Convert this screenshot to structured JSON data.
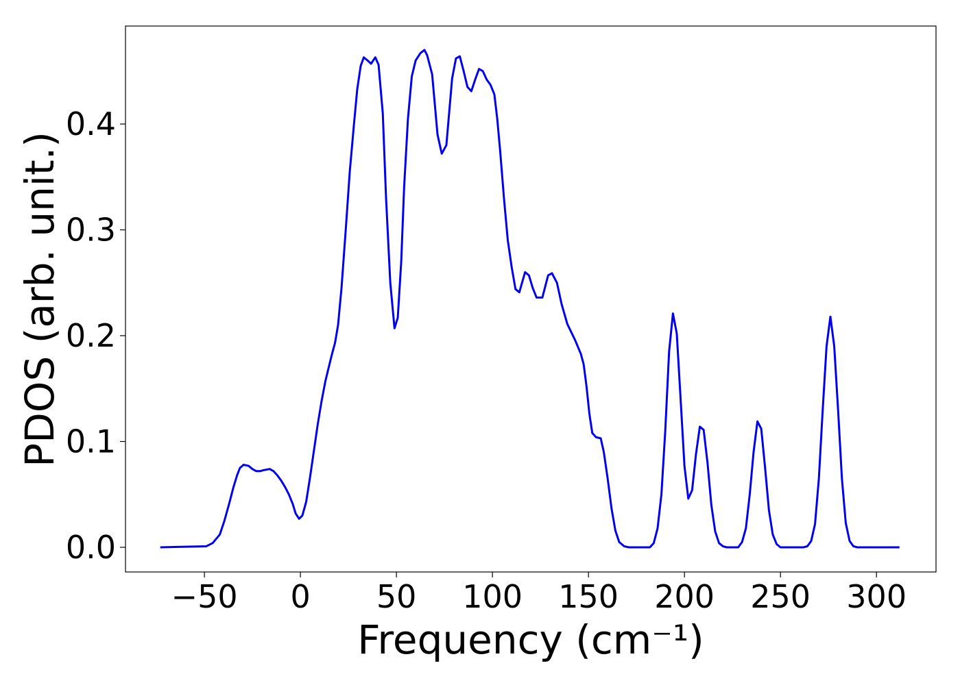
{
  "chart_data": {
    "type": "line",
    "xlabel": "Frequency (cm⁻¹)",
    "ylabel": "PDOS (arb. unit.)",
    "x": [
      -73,
      -49,
      -45.7,
      -42,
      -39.6,
      -37,
      -35,
      -33,
      -31.5,
      -29.6,
      -27,
      -25,
      -23,
      -21,
      -19,
      -16,
      -14,
      -12,
      -10,
      -8,
      -6,
      -4,
      -2.5,
      -0.7,
      1,
      3,
      5,
      7,
      9,
      11,
      13,
      15,
      16.5,
      18,
      19.6,
      21.4,
      23.6,
      25.7,
      27.9,
      29.6,
      31.4,
      33,
      35,
      36.8,
      39,
      40.7,
      42.9,
      44.6,
      46.8,
      49,
      50.7,
      52.5,
      54,
      56,
      58,
      60,
      62.5,
      64.6,
      66,
      68.6,
      71.4,
      73.6,
      76,
      79,
      81,
      83,
      85,
      87,
      89,
      91,
      93,
      95,
      97,
      99,
      101,
      102.5,
      104,
      106,
      108,
      110,
      112,
      114,
      117,
      119,
      121,
      123,
      126,
      129,
      131,
      133.6,
      136,
      139,
      143,
      146,
      147.5,
      149,
      150.5,
      152,
      154,
      156.4,
      158,
      160,
      162,
      164,
      166,
      168.6,
      171,
      182,
      184,
      186,
      188,
      190,
      192,
      194,
      196,
      198,
      200,
      202,
      204,
      206,
      208,
      210,
      212,
      214,
      216,
      218,
      220,
      222,
      228,
      230,
      232,
      234,
      236,
      238,
      240,
      242,
      244,
      246,
      248,
      250,
      262,
      264,
      266,
      268,
      270,
      272,
      274,
      276,
      278,
      280,
      282,
      284,
      286,
      288,
      290,
      312
    ],
    "series": [
      {
        "color": "#0000ee",
        "values": [
          0,
          0.001,
          0.004,
          0.012,
          0.025,
          0.042,
          0.056,
          0.068,
          0.075,
          0.078,
          0.077,
          0.074,
          0.072,
          0.072,
          0.073,
          0.074,
          0.072,
          0.068,
          0.063,
          0.057,
          0.05,
          0.041,
          0.032,
          0.027,
          0.03,
          0.043,
          0.066,
          0.091,
          0.116,
          0.138,
          0.157,
          0.172,
          0.183,
          0.193,
          0.21,
          0.245,
          0.3,
          0.355,
          0.4,
          0.433,
          0.455,
          0.463,
          0.46,
          0.457,
          0.463,
          0.456,
          0.41,
          0.33,
          0.25,
          0.207,
          0.217,
          0.27,
          0.34,
          0.405,
          0.445,
          0.46,
          0.467,
          0.47,
          0.465,
          0.447,
          0.39,
          0.372,
          0.38,
          0.443,
          0.462,
          0.464,
          0.45,
          0.435,
          0.431,
          0.442,
          0.452,
          0.45,
          0.442,
          0.437,
          0.428,
          0.405,
          0.375,
          0.33,
          0.29,
          0.265,
          0.244,
          0.241,
          0.26,
          0.257,
          0.245,
          0.236,
          0.236,
          0.257,
          0.259,
          0.25,
          0.23,
          0.211,
          0.196,
          0.183,
          0.173,
          0.152,
          0.126,
          0.108,
          0.104,
          0.103,
          0.09,
          0.065,
          0.037,
          0.016,
          0.005,
          0.001,
          0,
          0,
          0.004,
          0.018,
          0.05,
          0.11,
          0.185,
          0.221,
          0.202,
          0.14,
          0.077,
          0.046,
          0.054,
          0.088,
          0.114,
          0.111,
          0.08,
          0.04,
          0.015,
          0.004,
          0.001,
          0,
          0,
          0.005,
          0.018,
          0.05,
          0.09,
          0.119,
          0.112,
          0.075,
          0.035,
          0.012,
          0.003,
          0,
          0,
          0.001,
          0.006,
          0.022,
          0.065,
          0.13,
          0.19,
          0.218,
          0.19,
          0.13,
          0.065,
          0.023,
          0.006,
          0.001,
          0,
          0
        ]
      }
    ],
    "xlim": [
      -91.1,
      331
    ],
    "ylim": [
      -0.0233,
      0.4926
    ],
    "xticks": [
      {
        "value": -50,
        "label": "−50"
      },
      0,
      50,
      100,
      150,
      200,
      250,
      300
    ],
    "yticks": [
      {
        "value": 0,
        "label": "0.0"
      },
      0.1,
      0.2,
      0.3,
      0.4
    ]
  }
}
